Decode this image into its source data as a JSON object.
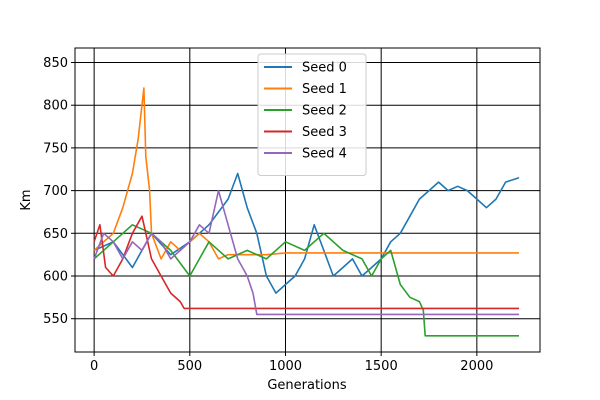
{
  "chart_data": {
    "type": "line",
    "title": "",
    "xlabel": "Generations",
    "ylabel": "Km",
    "xlim": [
      -100,
      2330
    ],
    "ylim": [
      511,
      867
    ],
    "xticks": [
      0,
      500,
      1000,
      1500,
      2000
    ],
    "yticks": [
      550,
      600,
      650,
      700,
      750,
      800,
      850
    ],
    "grid": true,
    "legend_position": "top-center",
    "series": [
      {
        "name": "Seed 0",
        "color": "#1f77b4",
        "points": [
          [
            0,
            630
          ],
          [
            100,
            640
          ],
          [
            200,
            610
          ],
          [
            300,
            650
          ],
          [
            400,
            625
          ],
          [
            500,
            640
          ],
          [
            600,
            660
          ],
          [
            700,
            690
          ],
          [
            750,
            720
          ],
          [
            800,
            680
          ],
          [
            850,
            650
          ],
          [
            900,
            600
          ],
          [
            950,
            580
          ],
          [
            1000,
            590
          ],
          [
            1050,
            600
          ],
          [
            1100,
            620
          ],
          [
            1150,
            660
          ],
          [
            1200,
            630
          ],
          [
            1250,
            600
          ],
          [
            1300,
            610
          ],
          [
            1350,
            620
          ],
          [
            1400,
            600
          ],
          [
            1450,
            610
          ],
          [
            1500,
            620
          ],
          [
            1550,
            640
          ],
          [
            1600,
            650
          ],
          [
            1650,
            670
          ],
          [
            1700,
            690
          ],
          [
            1750,
            700
          ],
          [
            1800,
            710
          ],
          [
            1850,
            700
          ],
          [
            1900,
            705
          ],
          [
            1950,
            700
          ],
          [
            2000,
            690
          ],
          [
            2050,
            680
          ],
          [
            2100,
            690
          ],
          [
            2150,
            710
          ],
          [
            2220,
            715
          ]
        ]
      },
      {
        "name": "Seed 1",
        "color": "#ff7f0e",
        "points": [
          [
            0,
            630
          ],
          [
            50,
            640
          ],
          [
            100,
            650
          ],
          [
            150,
            680
          ],
          [
            200,
            720
          ],
          [
            230,
            760
          ],
          [
            260,
            820
          ],
          [
            270,
            740
          ],
          [
            290,
            700
          ],
          [
            300,
            650
          ],
          [
            350,
            620
          ],
          [
            400,
            640
          ],
          [
            450,
            630
          ],
          [
            500,
            640
          ],
          [
            550,
            650
          ],
          [
            600,
            640
          ],
          [
            650,
            620
          ],
          [
            700,
            625
          ],
          [
            800,
            625
          ],
          [
            900,
            625
          ],
          [
            1000,
            627
          ],
          [
            1500,
            627
          ],
          [
            2000,
            627
          ],
          [
            2220,
            627
          ]
        ]
      },
      {
        "name": "Seed 2",
        "color": "#2ca02c",
        "points": [
          [
            0,
            620
          ],
          [
            100,
            640
          ],
          [
            200,
            660
          ],
          [
            300,
            650
          ],
          [
            400,
            630
          ],
          [
            500,
            600
          ],
          [
            600,
            640
          ],
          [
            700,
            620
          ],
          [
            800,
            630
          ],
          [
            900,
            620
          ],
          [
            1000,
            640
          ],
          [
            1100,
            630
          ],
          [
            1200,
            650
          ],
          [
            1300,
            630
          ],
          [
            1400,
            620
          ],
          [
            1450,
            600
          ],
          [
            1500,
            620
          ],
          [
            1550,
            630
          ],
          [
            1600,
            590
          ],
          [
            1650,
            575
          ],
          [
            1700,
            570
          ],
          [
            1720,
            560
          ],
          [
            1730,
            530
          ],
          [
            2000,
            530
          ],
          [
            2220,
            530
          ]
        ]
      },
      {
        "name": "Seed 3",
        "color": "#d62728",
        "points": [
          [
            0,
            640
          ],
          [
            30,
            660
          ],
          [
            60,
            610
          ],
          [
            100,
            600
          ],
          [
            150,
            620
          ],
          [
            200,
            650
          ],
          [
            250,
            670
          ],
          [
            300,
            620
          ],
          [
            350,
            600
          ],
          [
            400,
            580
          ],
          [
            450,
            570
          ],
          [
            470,
            562
          ],
          [
            600,
            562
          ],
          [
            1000,
            562
          ],
          [
            1500,
            562
          ],
          [
            2000,
            562
          ],
          [
            2220,
            562
          ]
        ]
      },
      {
        "name": "Seed 4",
        "color": "#9467bd",
        "points": [
          [
            0,
            620
          ],
          [
            50,
            650
          ],
          [
            100,
            640
          ],
          [
            150,
            620
          ],
          [
            200,
            640
          ],
          [
            250,
            630
          ],
          [
            300,
            650
          ],
          [
            350,
            640
          ],
          [
            400,
            620
          ],
          [
            450,
            630
          ],
          [
            500,
            640
          ],
          [
            550,
            660
          ],
          [
            600,
            650
          ],
          [
            650,
            700
          ],
          [
            700,
            660
          ],
          [
            750,
            620
          ],
          [
            800,
            600
          ],
          [
            830,
            580
          ],
          [
            850,
            555
          ],
          [
            1000,
            555
          ],
          [
            1500,
            555
          ],
          [
            2000,
            555
          ],
          [
            2220,
            555
          ]
        ]
      }
    ]
  }
}
